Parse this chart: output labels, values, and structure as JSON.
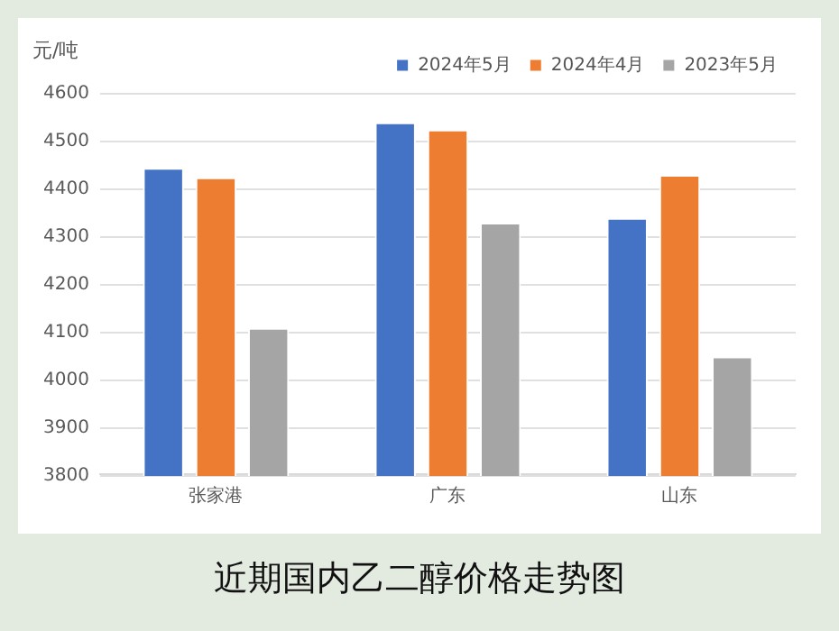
{
  "chart_data": {
    "type": "bar",
    "ylabel": "元/吨",
    "annotations": [
      "近期国内乙二醇价格走势图"
    ],
    "categories": [
      "张家港",
      "广东",
      "山东"
    ],
    "series": [
      {
        "name": "2024年5月",
        "color": "#4472c4",
        "values": [
          4445,
          4540,
          4340
        ]
      },
      {
        "name": "2024年4月",
        "color": "#ed7d31",
        "values": [
          4425,
          4525,
          4430
        ]
      },
      {
        "name": "2023年5月",
        "color": "#a5a5a5",
        "values": [
          4110,
          4330,
          4050
        ]
      }
    ],
    "ylim": [
      3800,
      4600
    ],
    "yticks": [
      3800,
      3900,
      4000,
      4100,
      4200,
      4300,
      4400,
      4500,
      4600
    ],
    "grid": "y",
    "legend": "top right"
  }
}
